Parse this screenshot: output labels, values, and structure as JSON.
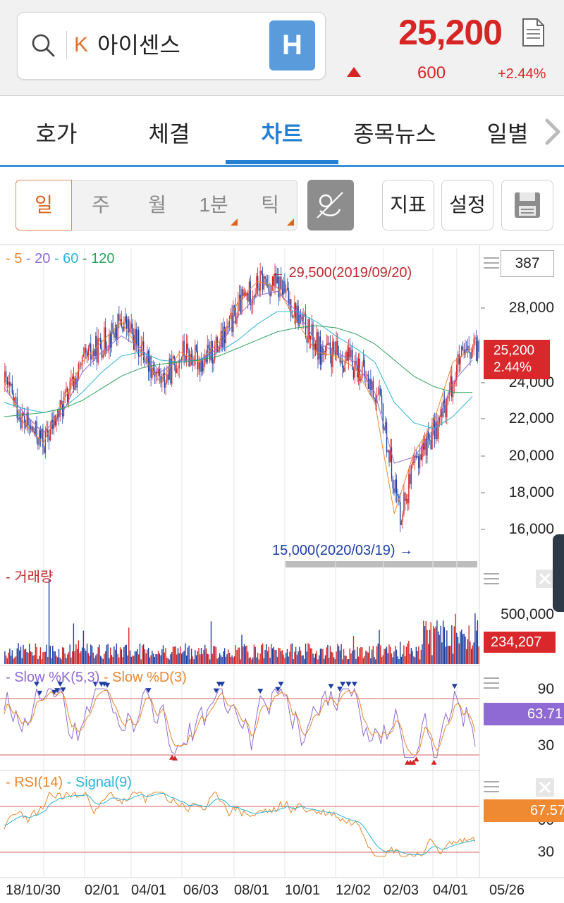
{
  "header": {
    "market_badge": "K",
    "stock_name": "아이센스",
    "h_button": "H",
    "price": "25,200",
    "change": "600",
    "change_pct": "+2.44%"
  },
  "tabs": [
    {
      "label": "호가"
    },
    {
      "label": "체결"
    },
    {
      "label": "차트",
      "active": true
    },
    {
      "label": "종목뉴스"
    },
    {
      "label": "일별"
    }
  ],
  "periods": [
    {
      "label": "일",
      "active": true
    },
    {
      "label": "주"
    },
    {
      "label": "월"
    },
    {
      "label": "1분"
    },
    {
      "label": "틱"
    }
  ],
  "side_buttons": {
    "indicator": "지표",
    "settings": "설정"
  },
  "chart_data": [
    {
      "type": "line",
      "name": "price",
      "legend": [
        {
          "label": "5",
          "color": "#e8872f"
        },
        {
          "label": "20",
          "color": "#8f6ad4"
        },
        {
          "label": "60",
          "color": "#2ab4d6"
        },
        {
          "label": "120",
          "color": "#2aa05a"
        }
      ],
      "candle_count": "387",
      "y_ticks": [
        "28,000",
        "24,000",
        "22,000",
        "20,000",
        "18,000",
        "16,000"
      ],
      "ylim": [
        15000,
        30000
      ],
      "current_price_tag": {
        "price": "25,200",
        "pct": "2.44%"
      },
      "annotations": {
        "high": "29,500(2019/09/20)",
        "low": "15,000(2020/03/19)"
      },
      "x_labels": [
        "18/10/30",
        "02/01",
        "04/01",
        "06/03",
        "08/01",
        "10/01",
        "12/02",
        "02/03",
        "04/01",
        "05/26"
      ],
      "series": [
        {
          "name": "5",
          "values": [
            23500,
            21500,
            20500,
            22500,
            24500,
            25500,
            26500,
            25000,
            23500,
            25000,
            24500,
            25500,
            27500,
            28500,
            28200,
            26500,
            25000,
            24800,
            24200,
            22500,
            17000,
            20000,
            21500,
            24500,
            25200
          ]
        },
        {
          "name": "20",
          "values": [
            23200,
            22000,
            21000,
            22000,
            24000,
            25000,
            25800,
            25200,
            24000,
            24600,
            24600,
            25200,
            26800,
            27800,
            28000,
            27000,
            25500,
            25000,
            24500,
            23000,
            19500,
            19800,
            21000,
            23500,
            24600
          ]
        },
        {
          "name": "60",
          "values": [
            22500,
            22200,
            22000,
            22200,
            23000,
            24000,
            24800,
            25000,
            24600,
            24500,
            24600,
            25000,
            25600,
            26400,
            27000,
            27000,
            26500,
            25800,
            25200,
            24500,
            22500,
            21500,
            21200,
            21800,
            22800
          ]
        },
        {
          "name": "120",
          "values": [
            21800,
            21900,
            22000,
            22200,
            22600,
            23200,
            23800,
            24200,
            24400,
            24500,
            24600,
            24800,
            25200,
            25600,
            26000,
            26200,
            26300,
            26200,
            25900,
            25400,
            24600,
            23800,
            23300,
            23000,
            23000
          ]
        }
      ]
    },
    {
      "type": "bar",
      "name": "volume",
      "legend": [
        {
          "label": "거래량",
          "color": "#c0282d"
        }
      ],
      "y_ticks": [
        "500,000"
      ],
      "current_tag": "234,207"
    },
    {
      "type": "line",
      "name": "stochastic",
      "legend": [
        {
          "label": "Slow %K(5,3)",
          "color": "#8f6ad4"
        },
        {
          "label": "Slow %D(3)",
          "color": "#e8872f"
        }
      ],
      "y_ticks": [
        "90",
        "30"
      ],
      "current_tag": "63.71"
    },
    {
      "type": "line",
      "name": "rsi",
      "legend": [
        {
          "label": "RSI(14)",
          "color": "#e8872f"
        },
        {
          "label": "Signal(9)",
          "color": "#2ab4d6"
        }
      ],
      "y_ticks": [
        "60",
        "30"
      ],
      "current_tag": "67.57"
    }
  ],
  "colors": {
    "up": "#d72424",
    "down": "#1d3fa0",
    "accent": "#2580d4"
  }
}
